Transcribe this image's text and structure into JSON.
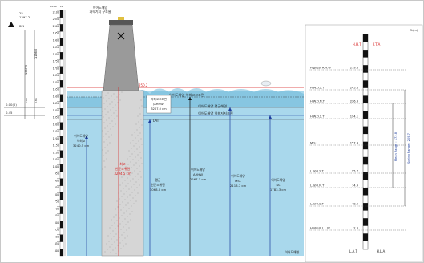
{
  "colors": {
    "sea": "#a9d8ec",
    "sea_deep": "#6cb8d8",
    "pile": "#d6d6d6",
    "tower": "#9a9a9a",
    "red": "#d62020",
    "blue": "#1f3f9f",
    "black": "#111111"
  },
  "left_diagram": {
    "top_left_values": [
      "25 -",
      "1397.2"
    ],
    "top_left_sub": "DF1",
    "ruler_head": [
      "2100",
      "EL"
    ],
    "ruler_ticks": [
      "2100",
      "2050",
      "2000",
      "1950",
      "1900",
      "1850",
      "1800",
      "1750",
      "1700",
      "1650",
      "1600",
      "1550",
      "1500",
      "1450",
      "1400",
      "1350",
      "1300",
      "1250",
      "1200",
      "1150",
      "1100",
      "1050",
      "1000",
      "950",
      "900",
      "850",
      "800",
      "750",
      "700",
      "650",
      "600",
      "550",
      "500",
      "450",
      "400"
    ],
    "side_dims": [
      "1397.5",
      "1198.0",
      "5.00",
      "3.86",
      "0.0",
      "4.60"
    ],
    "side_levels": [
      "0.00(0)",
      "0.45"
    ],
    "tower_title": [
      "이어도해양",
      "과학기지 구조물"
    ],
    "red_level": "250.2",
    "sea_labels": [
      "이어도해양 약최고고조면",
      "이어도해양 평균해면",
      "이어도해양 약최저저조면"
    ],
    "red_column": [
      "최고",
      "천문조위면",
      "3294.5 cm"
    ],
    "ahhw_box": [
      "약최고고조면",
      "(AHHW)",
      "3207.0 cm"
    ],
    "lat_tag": "LAT",
    "label1": [
      "이어도해양",
      "약최고",
      "3240.5 cm"
    ],
    "label2": [
      "평균",
      "천문조위면",
      "3068.0 cm"
    ],
    "label3": [
      "이어도해양",
      "AHHW",
      "2267.1 cm"
    ],
    "label4": [
      "이어도해양",
      "MSL",
      "2118.7 cm"
    ],
    "label5": [
      "이어도해양",
      "DL",
      "1783.3 cm"
    ],
    "bottom_label": "이어도해면"
  },
  "right_diagram": {
    "top_corner": "EL(m)",
    "top_marks": [
      "H.H.T",
      "F.T.A"
    ],
    "rows": [
      {
        "label": "Highest A.H.W",
        "value": "279.6"
      },
      {
        "label": "H.W.O.S.T",
        "value": "245.8"
      },
      {
        "label": "H.W.O.N.T",
        "value": "226.3"
      },
      {
        "label": "H.W.O.S.T",
        "value": "194.1"
      },
      {
        "label": "M.S.L",
        "value": "157.4"
      },
      {
        "label": "L.W.O.S.T",
        "value": "95.7"
      },
      {
        "label": "L.W.O.N.T",
        "value": "74.9"
      },
      {
        "label": "L.W.O.S.T",
        "value": "48.2"
      },
      {
        "label": "Highest L.L.W",
        "value": "2.6"
      }
    ],
    "bottom_marks": [
      "L.A.T",
      "H.L.A"
    ],
    "range_labels": [
      "Mean Range : 172.8",
      "Spring Range : 209.7"
    ]
  }
}
